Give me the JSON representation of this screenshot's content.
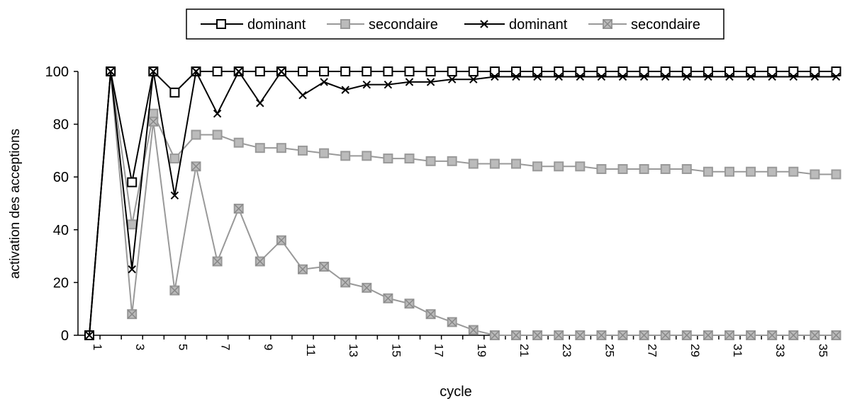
{
  "chart_data": {
    "type": "line",
    "xlabel": "cycle",
    "ylabel": "activation des acceptions",
    "ylim": [
      0,
      100
    ],
    "yticks": [
      0,
      20,
      40,
      60,
      80,
      100
    ],
    "x": [
      1,
      2,
      3,
      4,
      5,
      6,
      7,
      8,
      9,
      10,
      11,
      12,
      13,
      14,
      15,
      16,
      17,
      18,
      19,
      20,
      21,
      22,
      23,
      24,
      25,
      26,
      27,
      28,
      29,
      30,
      31,
      32,
      33,
      34,
      35,
      36
    ],
    "xtick_labels": [
      "1",
      "3",
      "5",
      "7",
      "9",
      "11",
      "13",
      "15",
      "17",
      "19",
      "21",
      "23",
      "25",
      "27",
      "29",
      "31",
      "33",
      "35"
    ],
    "legend_position": "top-center",
    "grid": false,
    "series": [
      {
        "name": "dominant",
        "marker": "square-open",
        "line_color": "#000000",
        "values": [
          0,
          100,
          58,
          100,
          92,
          100,
          100,
          100,
          100,
          100,
          100,
          100,
          100,
          100,
          100,
          100,
          100,
          100,
          100,
          100,
          100,
          100,
          100,
          100,
          100,
          100,
          100,
          100,
          100,
          100,
          100,
          100,
          100,
          100,
          100,
          100
        ]
      },
      {
        "name": "secondaire",
        "marker": "square-filled",
        "line_color": "#999999",
        "values": [
          0,
          100,
          42,
          84,
          67,
          76,
          76,
          73,
          71,
          71,
          70,
          69,
          68,
          68,
          67,
          67,
          66,
          66,
          65,
          65,
          65,
          64,
          64,
          64,
          63,
          63,
          63,
          63,
          63,
          62,
          62,
          62,
          62,
          62,
          61,
          61
        ]
      },
      {
        "name": "dominant",
        "marker": "cross",
        "line_color": "#000000",
        "values": [
          0,
          100,
          25,
          100,
          53,
          100,
          84,
          100,
          88,
          100,
          91,
          96,
          93,
          95,
          95,
          96,
          96,
          97,
          97,
          98,
          98,
          98,
          98,
          98,
          98,
          98,
          98,
          98,
          98,
          98,
          98,
          98,
          98,
          98,
          98,
          98
        ]
      },
      {
        "name": "secondaire",
        "marker": "square-cross",
        "line_color": "#999999",
        "values": [
          0,
          100,
          8,
          81,
          17,
          64,
          28,
          48,
          28,
          36,
          25,
          26,
          20,
          18,
          14,
          12,
          8,
          5,
          2,
          0,
          0,
          0,
          0,
          0,
          0,
          0,
          0,
          0,
          0,
          0,
          0,
          0,
          0,
          0,
          0,
          0
        ]
      }
    ]
  }
}
